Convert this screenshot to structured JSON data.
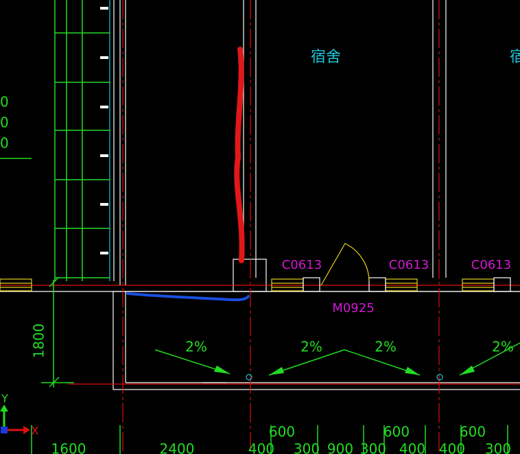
{
  "drawing": {
    "rooms": [
      "宿舍",
      "宿"
    ],
    "left_values": [
      "0",
      "0",
      "0"
    ],
    "windows": [
      "C0613",
      "C0613",
      "C0613"
    ],
    "door": "M0925",
    "dimension_vertical": "1800",
    "slopes": [
      "2%",
      "2%",
      "2%",
      "2%"
    ],
    "axes": [
      "Y",
      "X"
    ],
    "dimensions_bottom": [
      "1600",
      "2400",
      "400",
      "300",
      "900",
      "300",
      "400",
      "400",
      "300"
    ],
    "dimensions_upper": [
      "600",
      "600",
      "600"
    ]
  }
}
